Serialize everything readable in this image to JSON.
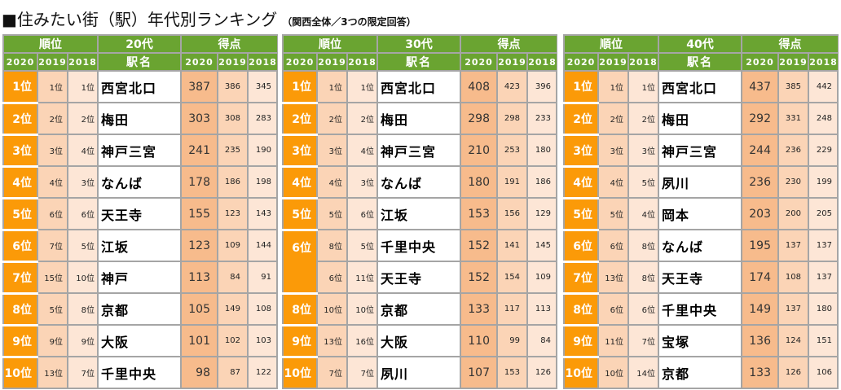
{
  "title": {
    "main": "■住みたい街（駅）年代別ランキング",
    "sub": "（関西全体／3つの限定回答）"
  },
  "headers": {
    "rank": "順位",
    "score": "得点",
    "station": "駅名",
    "y2020": "2020",
    "y2019": "2019",
    "y2018": "2018"
  },
  "colors": {
    "header_green": "#6aa431",
    "rank_orange": "#fb9a08",
    "score2020": "#f7bb8c",
    "light1": "#fbd4b6",
    "light2": "#fde6d6",
    "border": "#a5a5a5"
  },
  "tables": [
    {
      "age": "20代",
      "rows": [
        {
          "r2020": "1位",
          "r2019": "1位",
          "r2018": "1位",
          "station": "西宮北口",
          "s2020": "387",
          "s2019": "386",
          "s2018": "345"
        },
        {
          "r2020": "2位",
          "r2019": "2位",
          "r2018": "2位",
          "station": "梅田",
          "s2020": "303",
          "s2019": "308",
          "s2018": "283"
        },
        {
          "r2020": "3位",
          "r2019": "3位",
          "r2018": "4位",
          "station": "神戸三宮",
          "s2020": "241",
          "s2019": "235",
          "s2018": "190"
        },
        {
          "r2020": "4位",
          "r2019": "4位",
          "r2018": "3位",
          "station": "なんば",
          "s2020": "178",
          "s2019": "186",
          "s2018": "198"
        },
        {
          "r2020": "5位",
          "r2019": "6位",
          "r2018": "6位",
          "station": "天王寺",
          "s2020": "155",
          "s2019": "123",
          "s2018": "143"
        },
        {
          "r2020": "6位",
          "r2019": "7位",
          "r2018": "5位",
          "station": "江坂",
          "s2020": "123",
          "s2019": "109",
          "s2018": "144"
        },
        {
          "r2020": "7位",
          "r2019": "15位",
          "r2018": "10位",
          "station": "神戸",
          "s2020": "113",
          "s2019": "84",
          "s2018": "91"
        },
        {
          "r2020": "8位",
          "r2019": "5位",
          "r2018": "8位",
          "station": "京都",
          "s2020": "105",
          "s2019": "149",
          "s2018": "108"
        },
        {
          "r2020": "9位",
          "r2019": "9位",
          "r2018": "9位",
          "station": "大阪",
          "s2020": "101",
          "s2019": "102",
          "s2018": "103"
        },
        {
          "r2020": "10位",
          "r2019": "13位",
          "r2018": "7位",
          "station": "千里中央",
          "s2020": "98",
          "s2019": "87",
          "s2018": "122"
        }
      ]
    },
    {
      "age": "30代",
      "rows": [
        {
          "r2020": "1位",
          "r2019": "1位",
          "r2018": "1位",
          "station": "西宮北口",
          "s2020": "408",
          "s2019": "423",
          "s2018": "396"
        },
        {
          "r2020": "2位",
          "r2019": "2位",
          "r2018": "2位",
          "station": "梅田",
          "s2020": "298",
          "s2019": "298",
          "s2018": "233"
        },
        {
          "r2020": "3位",
          "r2019": "3位",
          "r2018": "4位",
          "station": "神戸三宮",
          "s2020": "210",
          "s2019": "253",
          "s2018": "180"
        },
        {
          "r2020": "4位",
          "r2019": "4位",
          "r2018": "3位",
          "station": "なんば",
          "s2020": "180",
          "s2019": "191",
          "s2018": "186"
        },
        {
          "r2020": "5位",
          "r2019": "5位",
          "r2018": "6位",
          "station": "江坂",
          "s2020": "153",
          "s2019": "156",
          "s2018": "129"
        },
        {
          "r2020": "6位",
          "r2019": "8位",
          "r2018": "5位",
          "station": "千里中央",
          "s2020": "152",
          "s2019": "141",
          "s2018": "145"
        },
        {
          "r2020": "",
          "r2019": "6位",
          "r2018": "11位",
          "station": "天王寺",
          "s2020": "152",
          "s2019": "154",
          "s2018": "109"
        },
        {
          "r2020": "8位",
          "r2019": "10位",
          "r2018": "10位",
          "station": "京都",
          "s2020": "133",
          "s2019": "117",
          "s2018": "113"
        },
        {
          "r2020": "9位",
          "r2019": "13位",
          "r2018": "16位",
          "station": "大阪",
          "s2020": "110",
          "s2019": "99",
          "s2018": "84"
        },
        {
          "r2020": "10位",
          "r2019": "7位",
          "r2018": "7位",
          "station": "夙川",
          "s2020": "107",
          "s2019": "153",
          "s2018": "126"
        }
      ]
    },
    {
      "age": "40代",
      "rows": [
        {
          "r2020": "1位",
          "r2019": "1位",
          "r2018": "1位",
          "station": "西宮北口",
          "s2020": "437",
          "s2019": "385",
          "s2018": "442"
        },
        {
          "r2020": "2位",
          "r2019": "2位",
          "r2018": "2位",
          "station": "梅田",
          "s2020": "292",
          "s2019": "331",
          "s2018": "248"
        },
        {
          "r2020": "3位",
          "r2019": "3位",
          "r2018": "3位",
          "station": "神戸三宮",
          "s2020": "244",
          "s2019": "236",
          "s2018": "229"
        },
        {
          "r2020": "4位",
          "r2019": "4位",
          "r2018": "5位",
          "station": "夙川",
          "s2020": "236",
          "s2019": "230",
          "s2018": "199"
        },
        {
          "r2020": "5位",
          "r2019": "5位",
          "r2018": "4位",
          "station": "岡本",
          "s2020": "203",
          "s2019": "200",
          "s2018": "205"
        },
        {
          "r2020": "6位",
          "r2019": "6位",
          "r2018": "8位",
          "station": "なんば",
          "s2020": "195",
          "s2019": "137",
          "s2018": "137"
        },
        {
          "r2020": "7位",
          "r2019": "13位",
          "r2018": "8位",
          "station": "天王寺",
          "s2020": "174",
          "s2019": "108",
          "s2018": "137"
        },
        {
          "r2020": "8位",
          "r2019": "6位",
          "r2018": "6位",
          "station": "千里中央",
          "s2020": "149",
          "s2019": "137",
          "s2018": "180"
        },
        {
          "r2020": "9位",
          "r2019": "11位",
          "r2018": "7位",
          "station": "宝塚",
          "s2020": "136",
          "s2019": "124",
          "s2018": "151"
        },
        {
          "r2020": "10位",
          "r2019": "10位",
          "r2018": "14位",
          "station": "京都",
          "s2020": "133",
          "s2019": "126",
          "s2018": "106"
        }
      ]
    }
  ]
}
